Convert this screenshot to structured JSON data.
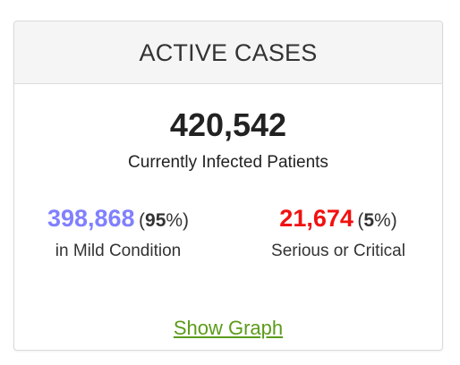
{
  "card": {
    "title": "ACTIVE CASES",
    "total": {
      "value": "420,542",
      "caption": "Currently Infected Patients"
    },
    "mild": {
      "value": "398,868",
      "percent_open": "(",
      "percent": "95",
      "percent_close": "%)",
      "caption": "in Mild Condition",
      "color": "#8080ff"
    },
    "serious": {
      "value": "21,674",
      "percent_open": "(",
      "percent": "5",
      "percent_close": "%)",
      "caption": "Serious or Critical",
      "color": "#f21010"
    },
    "link_label": "Show Graph",
    "link_color": "#5b9b1a"
  }
}
